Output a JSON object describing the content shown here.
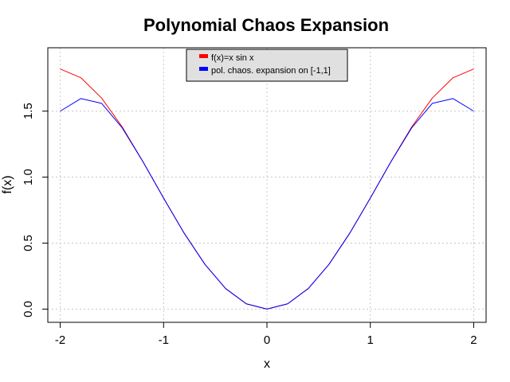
{
  "chart_data": {
    "type": "line",
    "title": "Polynomial Chaos Expansion",
    "xlabel": "x",
    "ylabel": "f(x)",
    "xlim": [
      -2.12,
      2.12
    ],
    "ylim": [
      -0.1,
      1.98
    ],
    "x_ticks": [
      -2,
      -1,
      0,
      1,
      2
    ],
    "y_ticks": [
      0.0,
      0.5,
      1.0,
      1.5
    ],
    "x_tick_labels": [
      "-2",
      "-1",
      "0",
      "1",
      "2"
    ],
    "y_tick_labels": [
      "0.0",
      "0.5",
      "1.0",
      "1.5"
    ],
    "grid": true,
    "legend_position": "top-center",
    "series": [
      {
        "name": "f(x)=x sin x",
        "color": "#ff0000",
        "x": [
          -2.0,
          -1.8,
          -1.6,
          -1.4,
          -1.2,
          -1.0,
          -0.8,
          -0.6,
          -0.4,
          -0.2,
          0.0,
          0.2,
          0.4,
          0.6,
          0.8,
          1.0,
          1.2,
          1.4,
          1.6,
          1.8,
          2.0
        ],
        "values": [
          1.819,
          1.753,
          1.599,
          1.38,
          1.118,
          0.841,
          0.574,
          0.339,
          0.156,
          0.04,
          0.0,
          0.04,
          0.156,
          0.339,
          0.574,
          0.841,
          1.118,
          1.38,
          1.599,
          1.753,
          1.819
        ]
      },
      {
        "name": "pol. chaos. expansion on [-1,1]",
        "color": "#0000ff",
        "x": [
          -2.0,
          -1.8,
          -1.6,
          -1.4,
          -1.2,
          -1.0,
          -0.8,
          -0.6,
          -0.4,
          -0.2,
          0.0,
          0.2,
          0.4,
          0.6,
          0.8,
          1.0,
          1.2,
          1.4,
          1.6,
          1.8,
          2.0
        ],
        "values": [
          1.5,
          1.595,
          1.559,
          1.373,
          1.117,
          0.841,
          0.574,
          0.339,
          0.156,
          0.04,
          0.0,
          0.04,
          0.156,
          0.339,
          0.574,
          0.841,
          1.117,
          1.373,
          1.559,
          1.595,
          1.5
        ]
      }
    ]
  }
}
